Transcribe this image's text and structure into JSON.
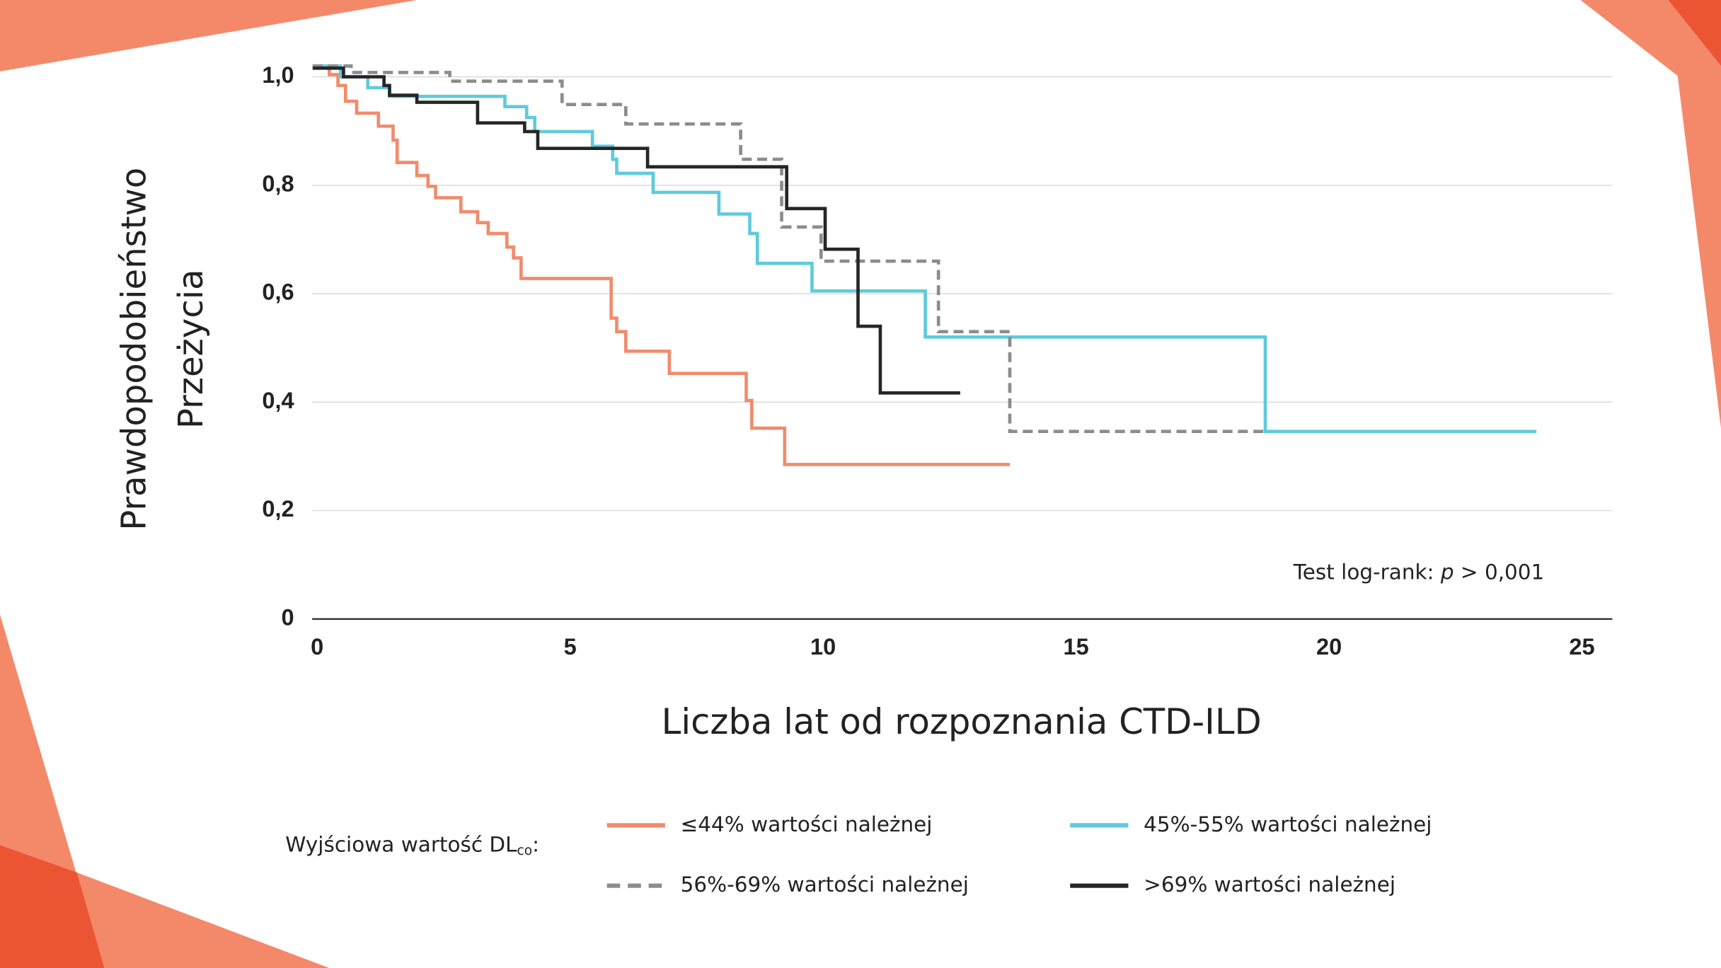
{
  "chart_data": {
    "type": "step",
    "xlabel": "Liczba lat od rozpoznania CTD-ILD",
    "ylabel": [
      "Prawdopodobieństwo",
      "Przeżycia"
    ],
    "annotation": [
      "Test log-rank: ",
      "p",
      " > 0,001"
    ],
    "legend_title": [
      "Wyjściowa wartość DL",
      "co",
      ":"
    ],
    "xlim": [
      -0.1,
      25.6
    ],
    "xticks": [
      0,
      5,
      10,
      15,
      20,
      25
    ],
    "ylim": [
      0,
      1.05
    ],
    "yticks": [
      0,
      {
        "value": 0.2,
        "label": "0,2"
      },
      {
        "value": 0.4,
        "label": "0,4"
      },
      {
        "value": 0.6,
        "label": "0,6"
      },
      {
        "value": 0.8,
        "label": "0,8"
      },
      {
        "value": 1.0,
        "label": "1,0"
      }
    ],
    "grid": true,
    "series": [
      {
        "name": "≤44% wartości należnej",
        "color": "#f08c6c",
        "line_style": "solid",
        "x": [
          -0.09,
          0.24,
          0.41,
          0.56,
          0.78,
          1.21,
          1.5,
          1.58,
          1.97,
          2.19,
          2.34,
          2.84,
          3.17,
          3.38,
          3.75,
          3.88,
          4.03,
          5.81,
          5.92,
          6.1,
          6.96,
          8.48,
          8.59,
          9.24,
          13.69
        ],
        "values": [
          1.016,
          1.004,
          0.984,
          0.955,
          0.933,
          0.909,
          0.883,
          0.842,
          0.818,
          0.798,
          0.777,
          0.751,
          0.731,
          0.711,
          0.686,
          0.666,
          0.628,
          0.555,
          0.53,
          0.494,
          0.453,
          0.403,
          0.352,
          0.285,
          0.285
        ]
      },
      {
        "name": "45%-55% wartości należnej",
        "color": "#5ecbdc",
        "line_style": "solid",
        "x": [
          -0.09,
          0.46,
          1.0,
          1.43,
          3.71,
          4.14,
          4.3,
          5.44,
          5.84,
          5.92,
          6.64,
          7.94,
          8.55,
          8.7,
          9.78,
          12.02,
          18.74,
          24.1
        ],
        "values": [
          1.02,
          1.0,
          0.98,
          0.964,
          0.945,
          0.925,
          0.899,
          0.872,
          0.848,
          0.822,
          0.787,
          0.747,
          0.711,
          0.656,
          0.605,
          0.52,
          0.346,
          0.346
        ]
      },
      {
        "name": "56%-69% wartości należnej",
        "color": "#8c8c8c",
        "line_style": "dashed",
        "x": [
          -0.09,
          0.67,
          2.62,
          4.84,
          6.1,
          8.37,
          9.18,
          9.96,
          12.28,
          13.69,
          18.74
        ],
        "values": [
          1.02,
          1.008,
          0.992,
          0.949,
          0.913,
          0.848,
          0.723,
          0.66,
          0.53,
          0.346,
          0.346
        ]
      },
      {
        "name": ">69% wartości należnej",
        "color": "#262626",
        "line_style": "solid",
        "x": [
          -0.09,
          0.52,
          1.32,
          1.43,
          1.97,
          3.17,
          4.1,
          4.36,
          6.53,
          9.28,
          10.04,
          10.69,
          11.13,
          12.71
        ],
        "values": [
          1.016,
          1.0,
          0.984,
          0.966,
          0.953,
          0.915,
          0.899,
          0.868,
          0.834,
          0.757,
          0.682,
          0.54,
          0.417,
          0.417
        ]
      }
    ]
  }
}
